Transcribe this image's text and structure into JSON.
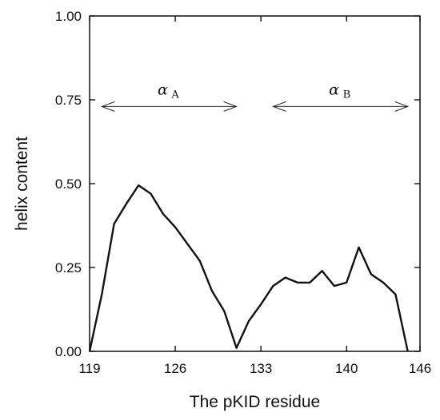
{
  "chart_data": {
    "type": "line",
    "xlabel": "The pKID residue",
    "ylabel": "helix content",
    "xlim": [
      119,
      146
    ],
    "ylim": [
      0,
      1
    ],
    "x_ticks": [
      119,
      126,
      133,
      140,
      146
    ],
    "x_tick_labels": [
      "119",
      "126",
      "133",
      "140",
      "146"
    ],
    "y_ticks": [
      0,
      0.25,
      0.5,
      0.75,
      1
    ],
    "y_tick_labels": [
      "0.00",
      "0.25",
      "0.50",
      "0.75",
      "1.00"
    ],
    "grid": false,
    "series": [
      {
        "x": [
          119,
          120,
          121,
          122,
          123,
          124,
          125,
          126,
          127,
          128,
          129,
          130,
          131,
          132,
          133,
          134,
          135,
          136,
          137,
          138,
          139,
          140,
          141,
          142,
          143,
          144,
          145
        ],
        "y": [
          0.0,
          0.17,
          0.38,
          0.44,
          0.495,
          0.47,
          0.41,
          0.37,
          0.32,
          0.27,
          0.18,
          0.12,
          0.01,
          0.09,
          0.14,
          0.195,
          0.22,
          0.205,
          0.205,
          0.24,
          0.195,
          0.205,
          0.31,
          0.23,
          0.205,
          0.17,
          0.0
        ]
      }
    ],
    "annotations": [
      {
        "label": "α",
        "subscript": "A",
        "x_start": 120,
        "x_end": 131
      },
      {
        "label": "α",
        "subscript": "B",
        "x_start": 134,
        "x_end": 145
      }
    ],
    "annotation_y": 0.73
  }
}
